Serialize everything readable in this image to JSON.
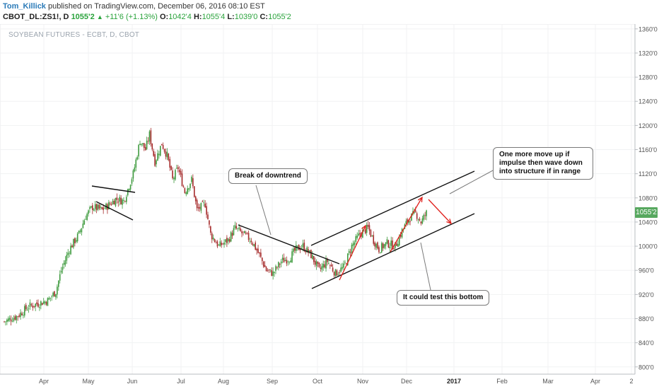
{
  "header": {
    "author": "Tom_Killick",
    "published_text": " published on TradingView.com, December 06, 2016 08:10 EST",
    "symbol": "CBOT_DL:ZS1!, D",
    "last": "1055'2",
    "change": "+11'6 (+1.13%)",
    "open_label": "O:",
    "open": "1042'4",
    "high_label": "H:",
    "high": "1055'4",
    "low_label": "L:",
    "low": "1039'0",
    "close_label": "C:",
    "close": "1055'2"
  },
  "chart_data": {
    "type": "candlestick",
    "title": "SOYBEAN FUTURES - ECBT, D, CBOT",
    "x_labels": [
      "Apr",
      "May",
      "Jun",
      "Jul",
      "Aug",
      "Sep",
      "Oct",
      "Nov",
      "Dec",
      "2017",
      "Feb",
      "Mar",
      "Apr",
      "2"
    ],
    "y_ticks": [
      "1360'0",
      "1320'0",
      "1280'0",
      "1240'0",
      "1200'0",
      "1160'0",
      "1120'0",
      "1080'0",
      "1040'0",
      "1000'0",
      "960'0",
      "920'0",
      "880'0",
      "840'0",
      "800'0"
    ],
    "y_tick_values": [
      1360,
      1320,
      1280,
      1240,
      1200,
      1160,
      1120,
      1080,
      1040,
      1000,
      960,
      920,
      880,
      840,
      800
    ],
    "ylim": [
      788,
      1368
    ],
    "last_price_label": "1055'2",
    "last_price_value": 1055.25,
    "close_path": [
      [
        0,
        875
      ],
      [
        10,
        885
      ],
      [
        18,
        900
      ],
      [
        25,
        905
      ],
      [
        32,
        910
      ],
      [
        38,
        925
      ],
      [
        42,
        960
      ],
      [
        48,
        995
      ],
      [
        55,
        1020
      ],
      [
        60,
        1050
      ],
      [
        65,
        1065
      ],
      [
        72,
        1060
      ],
      [
        78,
        1070
      ],
      [
        82,
        1078
      ],
      [
        88,
        1075
      ],
      [
        95,
        1120
      ],
      [
        100,
        1175
      ],
      [
        104,
        1160
      ],
      [
        107,
        1185
      ],
      [
        111,
        1140
      ],
      [
        116,
        1170
      ],
      [
        120,
        1150
      ],
      [
        124,
        1110
      ],
      [
        128,
        1130
      ],
      [
        133,
        1090
      ],
      [
        138,
        1110
      ],
      [
        142,
        1060
      ],
      [
        148,
        1070
      ],
      [
        152,
        1020
      ],
      [
        158,
        1000
      ],
      [
        165,
        1010
      ],
      [
        170,
        1030
      ],
      [
        176,
        1020
      ],
      [
        182,
        1010
      ],
      [
        188,
        985
      ],
      [
        193,
        960
      ],
      [
        198,
        955
      ],
      [
        204,
        975
      ],
      [
        210,
        980
      ],
      [
        215,
        995
      ],
      [
        220,
        1000
      ],
      [
        226,
        985
      ],
      [
        232,
        960
      ],
      [
        238,
        975
      ],
      [
        244,
        955
      ],
      [
        250,
        965
      ],
      [
        256,
        1000
      ],
      [
        262,
        1020
      ],
      [
        268,
        1030
      ],
      [
        272,
        1010
      ],
      [
        276,
        995
      ],
      [
        282,
        1005
      ],
      [
        288,
        1000
      ],
      [
        293,
        1025
      ],
      [
        298,
        1045
      ],
      [
        303,
        1055
      ],
      [
        307,
        1040
      ],
      [
        311,
        1055
      ]
    ],
    "annotations": [
      {
        "text": "Break of downtrend"
      },
      {
        "text": "One more move up if impulse then wave down into structure if in range"
      },
      {
        "text": "It could test this bottom"
      }
    ]
  }
}
